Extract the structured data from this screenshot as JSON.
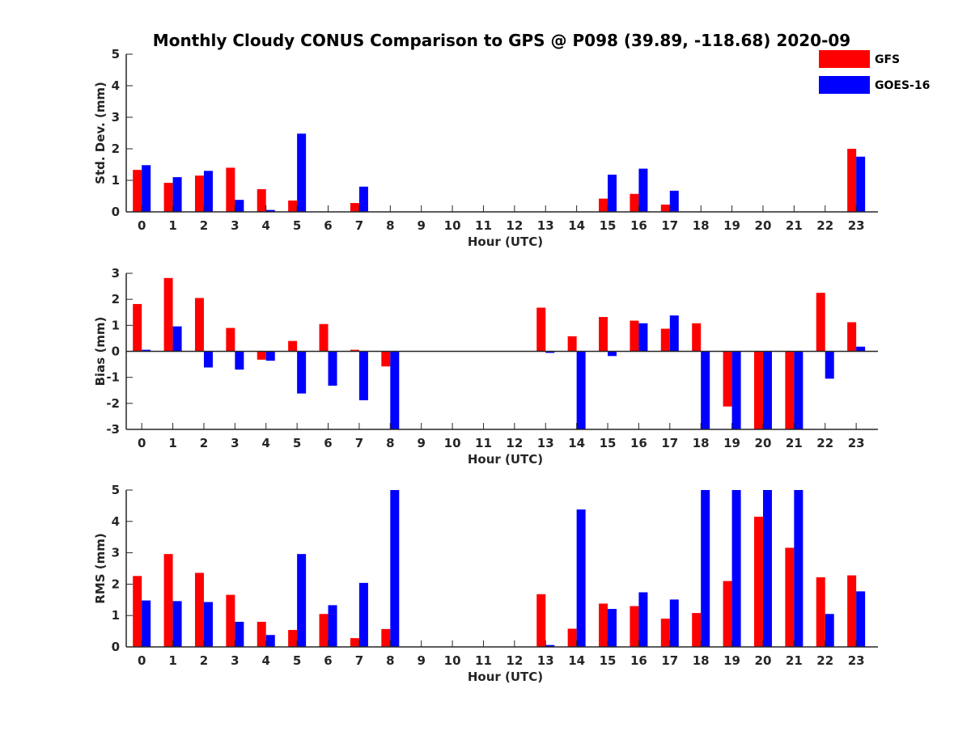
{
  "title": "Monthly Cloudy CONUS Comparison to GPS @ P098 (39.89, -118.68) 2020-09",
  "legend": [
    {
      "name": "GFS",
      "color": "#ff0000"
    },
    {
      "name": "GOES-16",
      "color": "#0000ff"
    }
  ],
  "chart_data": [
    {
      "type": "bar",
      "xlabel": "Hour (UTC)",
      "ylabel": "Std. Dev. (mm)",
      "ylim": [
        0,
        5
      ],
      "yticks": [
        "0",
        "1",
        "2",
        "3",
        "4",
        "5"
      ],
      "categories": [
        "0",
        "1",
        "2",
        "3",
        "4",
        "5",
        "6",
        "7",
        "8",
        "9",
        "10",
        "11",
        "12",
        "13",
        "14",
        "15",
        "16",
        "17",
        "18",
        "19",
        "20",
        "21",
        "22",
        "23"
      ],
      "series": [
        {
          "name": "GFS",
          "color": "#ff0000",
          "values": [
            1.33,
            0.92,
            1.15,
            1.4,
            0.72,
            0.36,
            0,
            0.28,
            0,
            0,
            0,
            0,
            0,
            0,
            0,
            0.42,
            0.57,
            0.23,
            0,
            0,
            0,
            0,
            0,
            2.0
          ]
        },
        {
          "name": "GOES-16",
          "color": "#0000ff",
          "values": [
            1.48,
            1.1,
            1.3,
            0.38,
            0.06,
            2.48,
            0,
            0.8,
            0,
            0,
            0,
            0,
            0,
            0,
            0,
            1.18,
            1.37,
            0.67,
            0,
            0,
            0,
            0,
            0,
            1.75
          ]
        }
      ]
    },
    {
      "type": "bar",
      "xlabel": "Hour (UTC)",
      "ylabel": "Bias (mm)",
      "ylim": [
        -3,
        3
      ],
      "yticks": [
        "-3",
        "-2",
        "-1",
        "0",
        "1",
        "2",
        "3"
      ],
      "categories": [
        "0",
        "1",
        "2",
        "3",
        "4",
        "5",
        "6",
        "7",
        "8",
        "9",
        "10",
        "11",
        "12",
        "13",
        "14",
        "15",
        "16",
        "17",
        "18",
        "19",
        "20",
        "21",
        "22",
        "23"
      ],
      "series": [
        {
          "name": "GFS",
          "color": "#ff0000",
          "values": [
            1.82,
            2.82,
            2.05,
            0.9,
            -0.32,
            0.4,
            1.05,
            0.06,
            -0.58,
            0,
            0,
            0,
            0,
            1.68,
            0.58,
            1.32,
            1.18,
            0.87,
            1.08,
            -2.12,
            -3.0,
            -3.0,
            2.25,
            1.12
          ]
        },
        {
          "name": "GOES-16",
          "color": "#0000ff",
          "values": [
            0.06,
            0.96,
            -0.62,
            -0.7,
            -0.36,
            -1.62,
            -1.32,
            -1.88,
            -3.0,
            0,
            0,
            0,
            0,
            -0.06,
            -3.0,
            -0.18,
            1.08,
            1.38,
            -3.0,
            -3.0,
            -3.0,
            -3.0,
            -1.05,
            0.18
          ]
        }
      ]
    },
    {
      "type": "bar",
      "xlabel": "Hour (UTC)",
      "ylabel": "RMS (mm)",
      "ylim": [
        0,
        5
      ],
      "yticks": [
        "0",
        "1",
        "2",
        "3",
        "4",
        "5"
      ],
      "categories": [
        "0",
        "1",
        "2",
        "3",
        "4",
        "5",
        "6",
        "7",
        "8",
        "9",
        "10",
        "11",
        "12",
        "13",
        "14",
        "15",
        "16",
        "17",
        "18",
        "19",
        "20",
        "21",
        "22",
        "23"
      ],
      "series": [
        {
          "name": "GFS",
          "color": "#ff0000",
          "values": [
            2.26,
            2.96,
            2.36,
            1.66,
            0.8,
            0.54,
            1.05,
            0.28,
            0.57,
            0,
            0,
            0,
            0,
            1.68,
            0.58,
            1.38,
            1.3,
            0.9,
            1.08,
            2.1,
            4.15,
            3.16,
            2.22,
            2.28
          ]
        },
        {
          "name": "GOES-16",
          "color": "#0000ff",
          "values": [
            1.48,
            1.46,
            1.43,
            0.8,
            0.38,
            2.96,
            1.33,
            2.04,
            5.0,
            0,
            0,
            0,
            0,
            0.06,
            4.38,
            1.21,
            1.74,
            1.51,
            5.0,
            5.0,
            5.0,
            5.0,
            1.05,
            1.77
          ]
        }
      ]
    }
  ]
}
